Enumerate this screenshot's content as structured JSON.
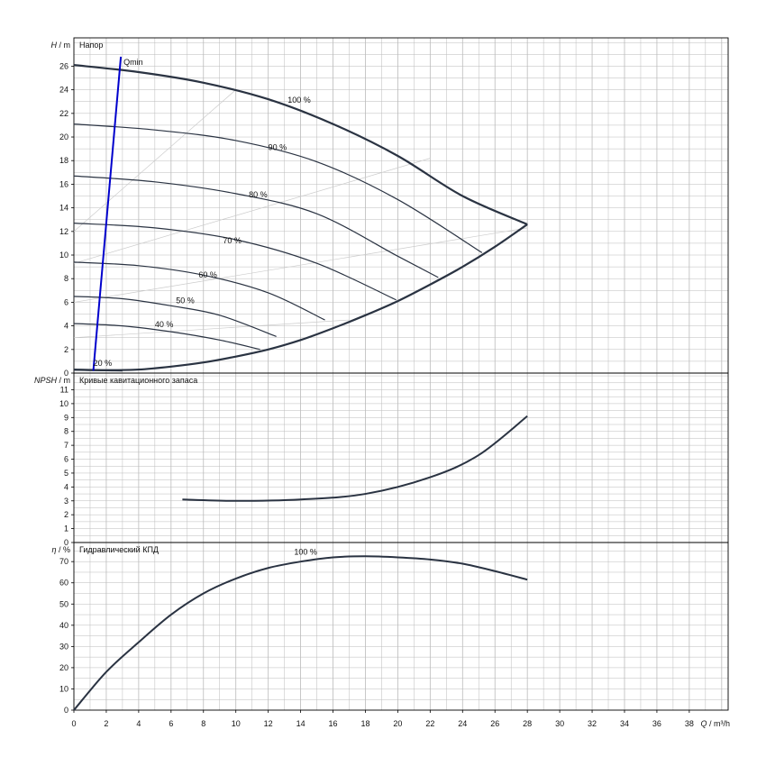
{
  "chart_data": [
    {
      "type": "line",
      "title": "Напор",
      "ylabel_symbol": "H",
      "ylabel_unit": "m",
      "ylim": [
        0,
        28.4
      ],
      "yticks": [
        0,
        2,
        4,
        6,
        8,
        10,
        12,
        14,
        16,
        18,
        20,
        22,
        24,
        26
      ],
      "xlim": [
        0,
        40.4
      ],
      "grid": true,
      "series": [
        {
          "name": "100 %",
          "x": [
            0,
            4,
            8,
            12,
            16,
            20,
            24,
            28
          ],
          "y": [
            26.1,
            25.5,
            24.6,
            23.2,
            21.1,
            18.4,
            15.0,
            12.6
          ]
        },
        {
          "name": "90 %",
          "x": [
            0,
            5,
            10,
            15,
            20,
            25.2
          ],
          "y": [
            21.1,
            20.6,
            19.7,
            17.9,
            14.7,
            10.2
          ]
        },
        {
          "name": "80 %",
          "x": [
            0,
            5,
            10,
            15,
            20,
            22.5
          ],
          "y": [
            16.7,
            16.2,
            15.2,
            13.5,
            9.9,
            8.1
          ]
        },
        {
          "name": "70 %",
          "x": [
            0,
            5,
            10,
            15,
            19.9
          ],
          "y": [
            12.7,
            12.3,
            11.3,
            9.3,
            6.2
          ]
        },
        {
          "name": "60 %",
          "x": [
            0,
            4,
            8,
            12,
            15.5
          ],
          "y": [
            9.4,
            9.1,
            8.3,
            6.8,
            4.5
          ]
        },
        {
          "name": "50 %",
          "x": [
            0,
            3,
            6,
            9,
            12.5
          ],
          "y": [
            6.5,
            6.3,
            5.7,
            4.9,
            3.1
          ]
        },
        {
          "name": "40 %",
          "x": [
            0,
            3,
            6,
            9,
            11.5
          ],
          "y": [
            4.2,
            4.0,
            3.5,
            2.8,
            2.0
          ]
        },
        {
          "name": "20 %",
          "x": [
            0,
            1,
            2,
            3
          ],
          "y": [
            0.25,
            0.22,
            0.2,
            0.18
          ]
        },
        {
          "name": "limit",
          "x": [
            0,
            2,
            4,
            6,
            8,
            10,
            12,
            14,
            16,
            18,
            20,
            22,
            24,
            26,
            28
          ],
          "y": [
            0.3,
            0.25,
            0.3,
            0.55,
            0.9,
            1.4,
            2.0,
            2.8,
            3.8,
            4.9,
            6.1,
            7.5,
            9.0,
            10.7,
            12.6
          ]
        },
        {
          "name": "Qmin",
          "x": [
            1.2,
            2.9
          ],
          "y": [
            0.2,
            26.8
          ]
        }
      ],
      "annotations": [
        "Qmin",
        "100 %",
        "90 %",
        "80 %",
        "70 %",
        "60 %",
        "50 %",
        "40 %",
        "20 %"
      ],
      "colors": {
        "curve": "#2a3342",
        "qmin": "#0000cc",
        "grid": "#bbbbbb",
        "aux": "#cccccc"
      }
    },
    {
      "type": "line",
      "title": "Кривые кавитационного запаса",
      "ylabel_symbol": "NPSH",
      "ylabel_unit": "m",
      "ylim": [
        0,
        12.2
      ],
      "yticks": [
        0,
        1,
        2,
        3,
        4,
        5,
        6,
        7,
        8,
        9,
        10,
        11
      ],
      "xlim": [
        0,
        40.4
      ],
      "grid": true,
      "series": [
        {
          "name": "npsh",
          "x": [
            6.7,
            10,
            14,
            18,
            22,
            25,
            28
          ],
          "y": [
            3.1,
            3.0,
            3.1,
            3.5,
            4.7,
            6.3,
            9.1
          ]
        }
      ]
    },
    {
      "type": "line",
      "title": "Гидравлический КПД",
      "ylabel_symbol": "η",
      "ylabel_unit": "%",
      "ylim": [
        0,
        79
      ],
      "yticks": [
        0,
        10,
        20,
        30,
        40,
        50,
        60,
        70
      ],
      "xlim": [
        0,
        40.4
      ],
      "xticks": [
        0,
        2,
        4,
        6,
        8,
        10,
        12,
        14,
        16,
        18,
        20,
        22,
        24,
        26,
        28,
        30,
        32,
        34,
        36,
        38
      ],
      "xlabel_symbol": "Q",
      "xlabel_unit": "m³/h",
      "grid": true,
      "series": [
        {
          "name": "100 %",
          "x": [
            0,
            2,
            4,
            6,
            8,
            10,
            12,
            14,
            16,
            18,
            20,
            22,
            24,
            26,
            28
          ],
          "y": [
            0,
            18,
            32,
            45,
            55,
            62,
            67,
            70,
            72,
            72.5,
            72,
            71,
            69,
            65.5,
            61.5
          ]
        }
      ],
      "annotations": [
        "100 %"
      ]
    }
  ]
}
